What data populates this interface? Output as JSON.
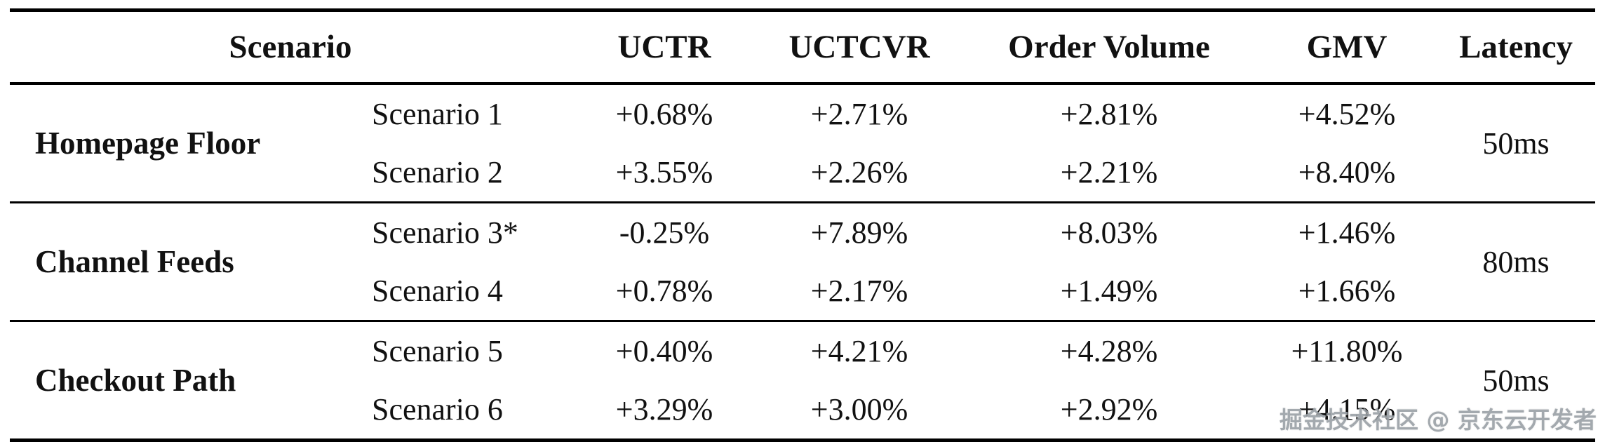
{
  "table": {
    "headers": {
      "scenario": "Scenario",
      "uctr": "UCTR",
      "uctcvr": "UCTCVR",
      "order_volume": "Order Volume",
      "gmv": "GMV",
      "latency": "Latency"
    },
    "groups": [
      {
        "name": "Homepage Floor",
        "latency": "50ms",
        "rows": [
          {
            "scenario": "Scenario 1",
            "uctr": "+0.68%",
            "uctcvr": "+2.71%",
            "order_volume": "+2.81%",
            "gmv": "+4.52%"
          },
          {
            "scenario": "Scenario 2",
            "uctr": "+3.55%",
            "uctcvr": "+2.26%",
            "order_volume": "+2.21%",
            "gmv": "+8.40%"
          }
        ]
      },
      {
        "name": "Channel Feeds",
        "latency": "80ms",
        "rows": [
          {
            "scenario": "Scenario 3*",
            "uctr": "-0.25%",
            "uctcvr": "+7.89%",
            "order_volume": "+8.03%",
            "gmv": "+1.46%"
          },
          {
            "scenario": "Scenario 4",
            "uctr": "+0.78%",
            "uctcvr": "+2.17%",
            "order_volume": "+1.49%",
            "gmv": "+1.66%"
          }
        ]
      },
      {
        "name": "Checkout Path",
        "latency": "50ms",
        "rows": [
          {
            "scenario": "Scenario 5",
            "uctr": "+0.40%",
            "uctcvr": "+4.21%",
            "order_volume": "+4.28%",
            "gmv": "+11.80%"
          },
          {
            "scenario": "Scenario 6",
            "uctr": "+3.29%",
            "uctcvr": "+3.00%",
            "order_volume": "+2.92%",
            "gmv": "+4.15%"
          }
        ]
      }
    ]
  },
  "watermark": "掘金技术社区 @ 京东云开发者"
}
